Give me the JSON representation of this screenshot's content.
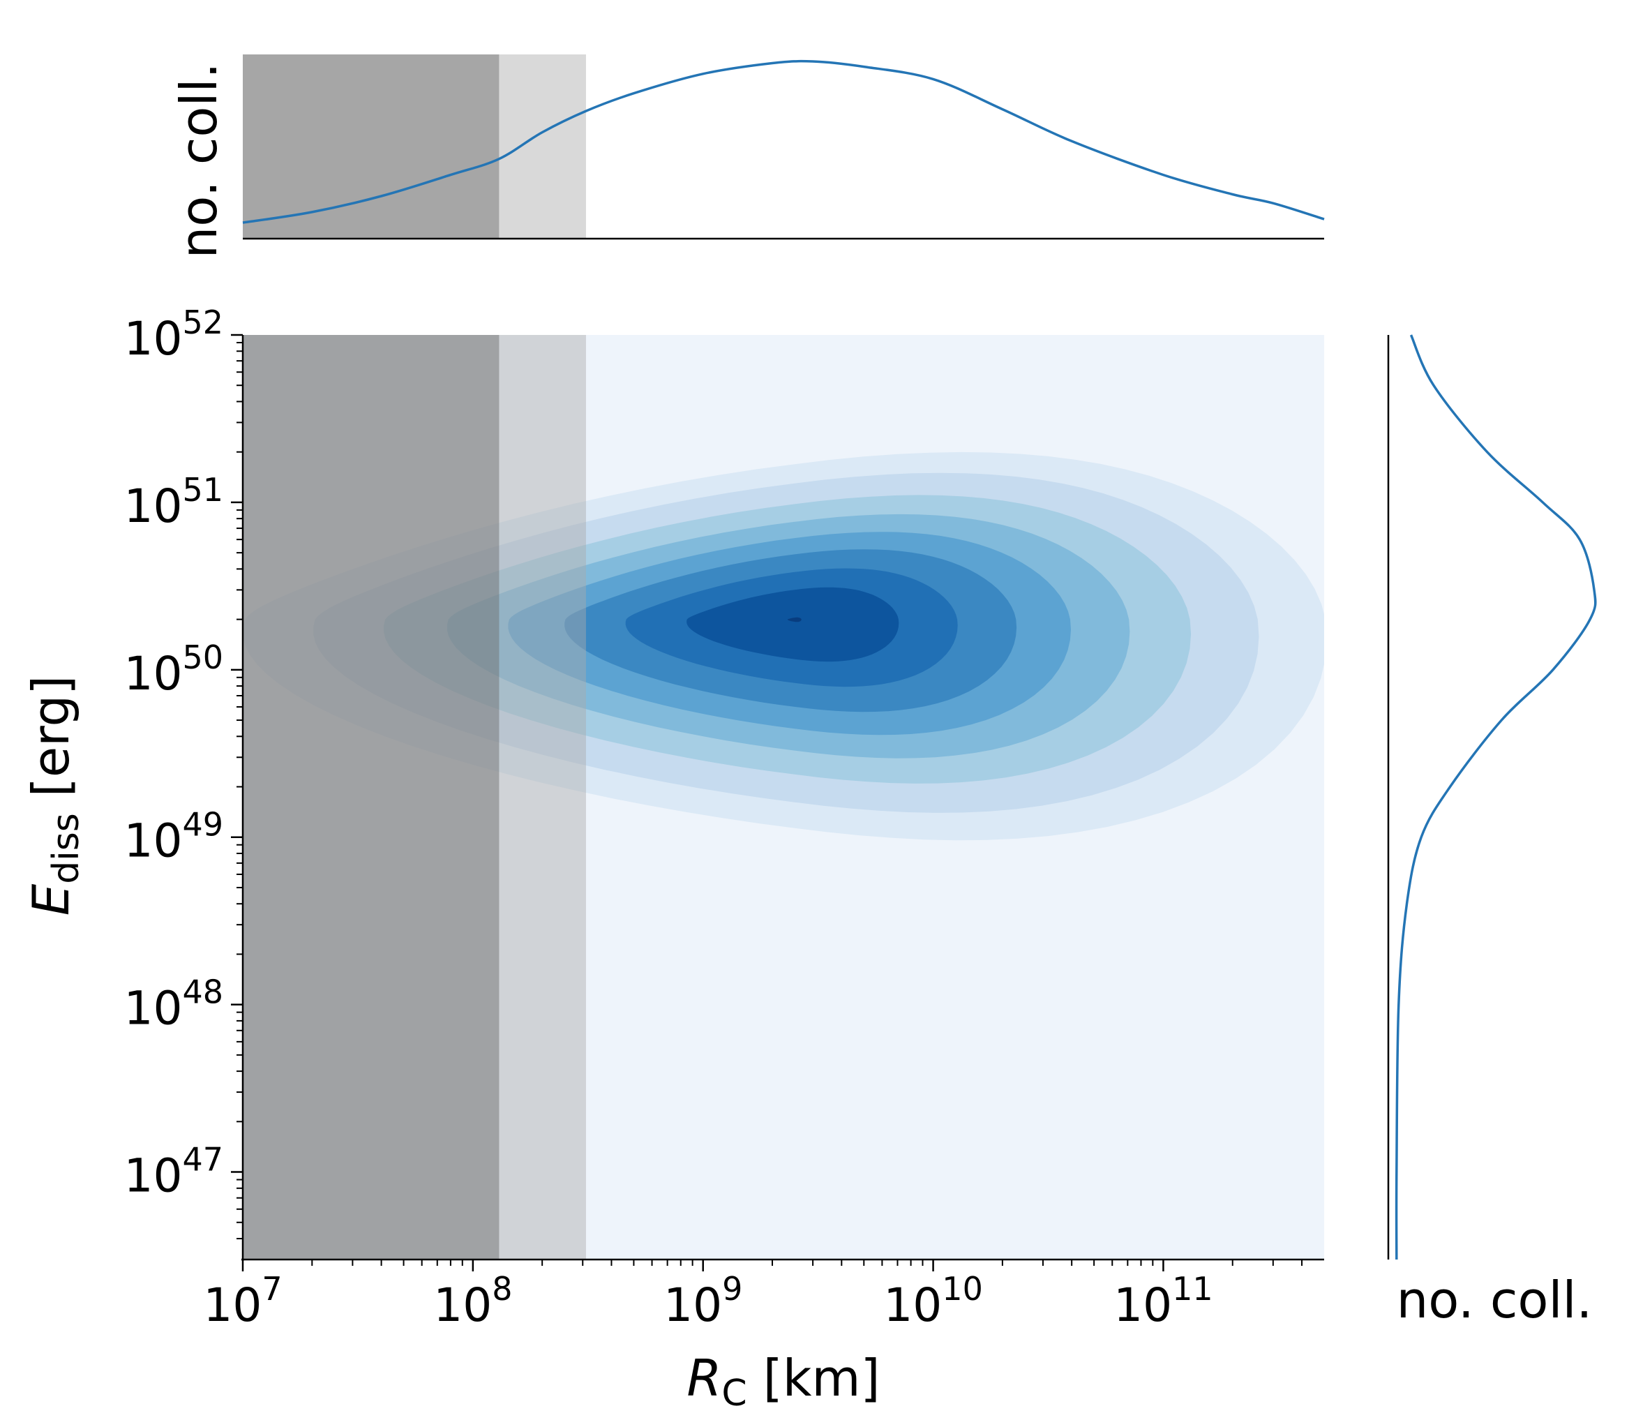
{
  "chart_data": {
    "type": "joint-kde",
    "xlabel": {
      "symbol": "R",
      "subscript": "C",
      "unit": " [km]"
    },
    "ylabel": {
      "symbol": "E",
      "subscript": "diss",
      "unit": " [erg]"
    },
    "marginal_top_label": "no. coll.",
    "marginal_right_label": "no. coll.",
    "x_scale": "log",
    "y_scale": "log",
    "xlim": [
      10000000.0,
      500000000000.0
    ],
    "ylim": [
      3e+46,
      1e+52
    ],
    "x_ticks": [
      {
        "value": 10000000.0,
        "base": "10",
        "exp": "7"
      },
      {
        "value": 100000000.0,
        "base": "10",
        "exp": "8"
      },
      {
        "value": 1000000000.0,
        "base": "10",
        "exp": "9"
      },
      {
        "value": 10000000000.0,
        "base": "10",
        "exp": "10"
      },
      {
        "value": 100000000000.0,
        "base": "10",
        "exp": "11"
      }
    ],
    "y_ticks": [
      {
        "value": 1e+47,
        "base": "10",
        "exp": "47"
      },
      {
        "value": 1e+48,
        "base": "10",
        "exp": "48"
      },
      {
        "value": 1e+49,
        "base": "10",
        "exp": "49"
      },
      {
        "value": 1e+50,
        "base": "10",
        "exp": "50"
      },
      {
        "value": 1e+51,
        "base": "10",
        "exp": "51"
      },
      {
        "value": 1e+52,
        "base": "10",
        "exp": "52"
      }
    ],
    "shaded_regions": [
      {
        "x_from": 10000000.0,
        "x_to": 130000000.0,
        "tone": "dark"
      },
      {
        "x_from": 130000000.0,
        "x_to": 310000000.0,
        "tone": "light"
      }
    ],
    "kde_peak": {
      "x": 2500000000.0,
      "y": 2e+50
    },
    "contour_levels": [
      {
        "sx": 2.35,
        "sy": 1.05,
        "color": "#dbe9f6"
      },
      {
        "sx": 2.05,
        "sy": 0.92,
        "color": "#c6dbef"
      },
      {
        "sx": 1.75,
        "sy": 0.78,
        "color": "#a6cee4"
      },
      {
        "sx": 1.48,
        "sy": 0.66,
        "color": "#81badb"
      },
      {
        "sx": 1.22,
        "sy": 0.55,
        "color": "#5ca3d2"
      },
      {
        "sx": 0.98,
        "sy": 0.44,
        "color": "#3b88c2"
      },
      {
        "sx": 0.72,
        "sy": 0.32,
        "color": "#2170b5"
      },
      {
        "sx": 0.46,
        "sy": 0.2,
        "color": "#0d559e"
      },
      {
        "sx": 0.03,
        "sy": 0.012,
        "color": "#083d7f"
      }
    ],
    "background_color": "#eef4fb",
    "line_color": "#2475b5",
    "marginal_x": {
      "x": [
        10000000.0,
        20000000.0,
        40000000.0,
        80000000.0,
        130000000.0,
        200000000.0,
        310000000.0,
        500000000.0,
        1000000000.0,
        2000000000.0,
        3000000000.0,
        5000000000.0,
        10000000000.0,
        20000000000.0,
        40000000000.0,
        100000000000.0,
        200000000000.0,
        300000000000.0,
        500000000000.0
      ],
      "density": [
        0.09,
        0.15,
        0.24,
        0.36,
        0.45,
        0.6,
        0.72,
        0.82,
        0.93,
        0.99,
        1.0,
        0.97,
        0.9,
        0.73,
        0.55,
        0.36,
        0.25,
        0.2,
        0.11
      ]
    },
    "marginal_y": {
      "y": [
        1e+52,
        5e+51,
        2e+51,
        1e+51,
        6e+50,
        3e+50,
        2e+50,
        1e+50,
        5e+49,
        2e+49,
        1e+49,
        4e+48,
        1e+48,
        1e+47,
        3e+46
      ],
      "density": [
        0.11,
        0.22,
        0.48,
        0.75,
        0.93,
        1.0,
        0.98,
        0.8,
        0.55,
        0.3,
        0.16,
        0.09,
        0.05,
        0.04,
        0.04
      ]
    }
  }
}
